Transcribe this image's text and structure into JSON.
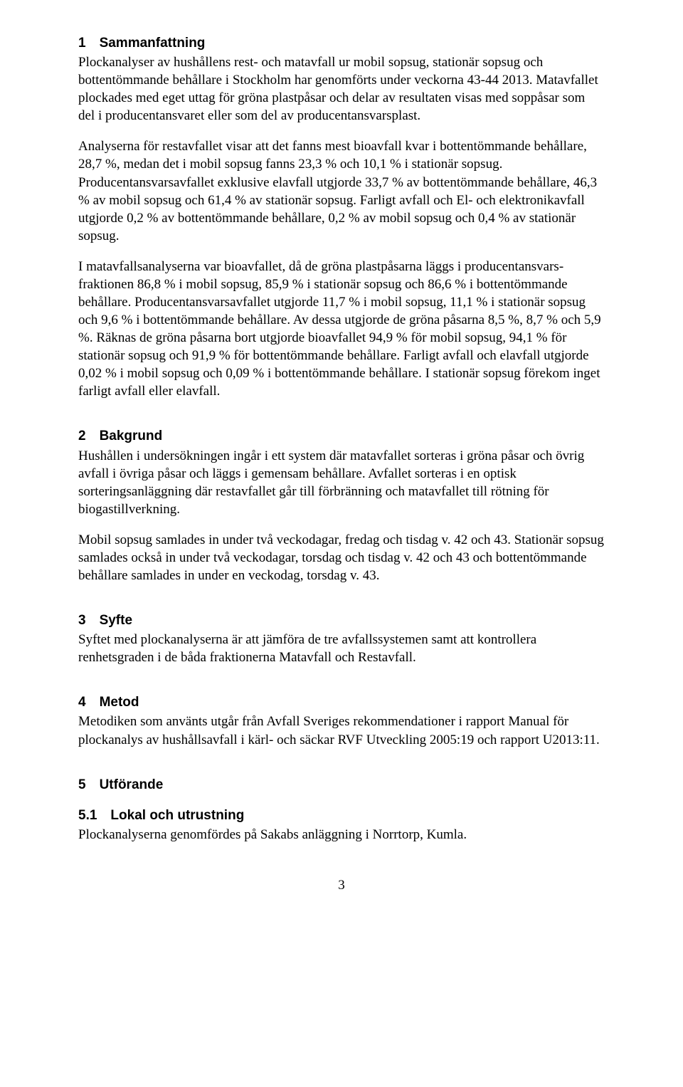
{
  "sections": {
    "s1": {
      "heading": "1 Sammanfattning",
      "p1": "Plockanalyser av hushållens rest- och matavfall ur mobil sopsug, stationär sopsug och bottentömmande behållare i Stockholm har genomförts under veckorna 43-44 2013. Matavfallet plockades med eget uttag för gröna plastpåsar och delar av resultaten visas med soppåsar som del i producentansvaret eller som del av producentansvarsplast.",
      "p2": "Analyserna för restavfallet visar att det fanns mest bioavfall kvar i bottentömmande behållare, 28,7 %, medan det i mobil sopsug fanns 23,3 % och 10,1 % i stationär sopsug. Producentansvarsavfallet exklusive elavfall utgjorde 33,7 % av bottentömmande behållare, 46,3  % av mobil sopsug och 61,4 % av stationär sopsug. Farligt avfall och El- och elektronikavfall utgjorde 0,2 % av bottentömmande behållare, 0,2 % av mobil sopsug och 0,4 % av stationär sopsug.",
      "p3": "I matavfallsanalyserna var bioavfallet, då de gröna plastpåsarna läggs i producentansvars-fraktionen 86,8 % i mobil sopsug, 85,9 % i stationär sopsug och 86,6 % i bottentömmande behållare. Producentansvarsavfallet utgjorde 11,7  % i mobil sopsug, 11,1 % i stationär sopsug och 9,6 % i bottentömmande behållare. Av dessa utgjorde de gröna påsarna 8,5 %, 8,7 % och 5,9 %. Räknas de gröna påsarna bort utgjorde bioavfallet 94,9 % för mobil sopsug, 94,1 % för stationär sopsug och 91,9 % för bottentömmande behållare. Farligt avfall och elavfall utgjorde 0,02 % i mobil sopsug och 0,09 % i bottentömmande behållare. I stationär sopsug förekom inget farligt avfall eller elavfall."
    },
    "s2": {
      "heading": "2 Bakgrund",
      "p1": "Hushållen i undersökningen ingår i ett system där matavfallet sorteras i gröna påsar och övrig avfall i övriga påsar och läggs i gemensam behållare. Avfallet sorteras i en optisk sorteringsanläggning där restavfallet går till förbränning och matavfallet till rötning för biogastillverkning.",
      "p2": "Mobil sopsug samlades in under två veckodagar, fredag och tisdag v. 42 och 43. Stationär sopsug samlades också in under två veckodagar, torsdag och tisdag v. 42 och 43 och bottentömmande behållare samlades in under en veckodag, torsdag v. 43."
    },
    "s3": {
      "heading": "3 Syfte",
      "p1": "Syftet med plockanalyserna är att jämföra de tre avfallssystemen samt att kontrollera renhetsgraden i de båda fraktionerna Matavfall och Restavfall."
    },
    "s4": {
      "heading": "4 Metod",
      "p1": "Metodiken som använts utgår från Avfall Sveriges rekommendationer i rapport Manual för plockanalys av hushållsavfall i kärl- och säckar RVF Utveckling 2005:19 och rapport U2013:11."
    },
    "s5": {
      "heading": "5 Utförande",
      "sub": {
        "heading": "5.1 Lokal och utrustning",
        "p1": "Plockanalyserna genomfördes på Sakabs anläggning i Norrtorp, Kumla."
      }
    }
  },
  "page_number": "3"
}
